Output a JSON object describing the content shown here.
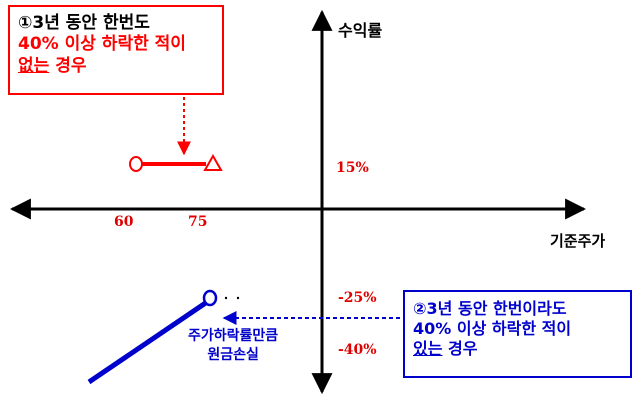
{
  "axes": {
    "y_label": "수익률",
    "x_label": "기준주가"
  },
  "box1": {
    "line1": "①3년 동안 한번도",
    "line2": "40% 이상 하락한 적이",
    "line3_underlined": "없는",
    "line3_rest": " 경우"
  },
  "box2": {
    "line1": "②3년 동안 한번이라도",
    "line2": "40% 이상 하락한 적이",
    "line3_underlined": "있는",
    "line3_rest": " 경우"
  },
  "ticks": {
    "x_60": "60",
    "x_75": "75"
  },
  "values": {
    "plus15": "15%",
    "minus25": "-25%",
    "minus40": "-40%"
  },
  "loss": {
    "line1": "주가하락률만큼",
    "line2": "원금손실"
  },
  "colors": {
    "red": "#ff0000",
    "blue": "#0000cc",
    "axis": "#000000"
  }
}
